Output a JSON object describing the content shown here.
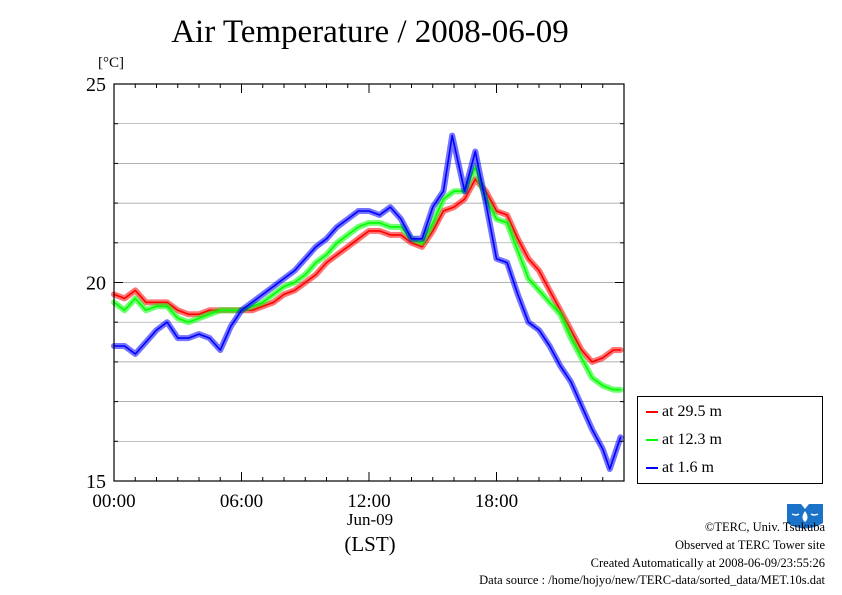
{
  "chart_data": {
    "type": "line",
    "title": "Air Temperature / 2008-06-09",
    "ylabel": "[°C]",
    "xlabel": "Jun-09",
    "x_unit": "(LST)",
    "ylim": [
      15,
      25
    ],
    "y_ticks": [
      "15",
      "20",
      "25"
    ],
    "xlim": [
      "00:00",
      "24:00"
    ],
    "x_ticks": [
      "00:00",
      "06:00",
      "12:00",
      "18:00"
    ],
    "grid": true,
    "legend_position": "bottom-right, outside plot",
    "series": [
      {
        "name": "at 29.5 m",
        "color": "#ff0000",
        "points": [
          [
            "00:00",
            19.7
          ],
          [
            "00:30",
            19.6
          ],
          [
            "01:00",
            19.8
          ],
          [
            "01:30",
            19.5
          ],
          [
            "02:00",
            19.5
          ],
          [
            "02:30",
            19.5
          ],
          [
            "03:00",
            19.3
          ],
          [
            "03:30",
            19.2
          ],
          [
            "04:00",
            19.2
          ],
          [
            "04:30",
            19.3
          ],
          [
            "05:00",
            19.3
          ],
          [
            "05:30",
            19.3
          ],
          [
            "06:00",
            19.3
          ],
          [
            "06:30",
            19.3
          ],
          [
            "07:00",
            19.4
          ],
          [
            "07:30",
            19.5
          ],
          [
            "08:00",
            19.7
          ],
          [
            "08:30",
            19.8
          ],
          [
            "09:00",
            20.0
          ],
          [
            "09:30",
            20.2
          ],
          [
            "10:00",
            20.5
          ],
          [
            "10:30",
            20.7
          ],
          [
            "11:00",
            20.9
          ],
          [
            "11:30",
            21.1
          ],
          [
            "12:00",
            21.3
          ],
          [
            "12:30",
            21.3
          ],
          [
            "13:00",
            21.2
          ],
          [
            "13:30",
            21.2
          ],
          [
            "14:00",
            21.0
          ],
          [
            "14:30",
            20.9
          ],
          [
            "15:00",
            21.3
          ],
          [
            "15:30",
            21.8
          ],
          [
            "16:00",
            21.9
          ],
          [
            "16:30",
            22.1
          ],
          [
            "17:00",
            22.6
          ],
          [
            "17:30",
            22.3
          ],
          [
            "18:00",
            21.8
          ],
          [
            "18:30",
            21.7
          ],
          [
            "19:00",
            21.1
          ],
          [
            "19:30",
            20.6
          ],
          [
            "20:00",
            20.3
          ],
          [
            "20:30",
            19.8
          ],
          [
            "21:00",
            19.3
          ],
          [
            "21:30",
            18.8
          ],
          [
            "22:00",
            18.3
          ],
          [
            "22:30",
            18.0
          ],
          [
            "23:00",
            18.1
          ],
          [
            "23:30",
            18.3
          ],
          [
            "23:50",
            18.3
          ]
        ]
      },
      {
        "name": "at 12.3 m",
        "color": "#00ff00",
        "points": [
          [
            "00:00",
            19.5
          ],
          [
            "00:30",
            19.3
          ],
          [
            "01:00",
            19.6
          ],
          [
            "01:30",
            19.3
          ],
          [
            "02:00",
            19.4
          ],
          [
            "02:30",
            19.4
          ],
          [
            "03:00",
            19.1
          ],
          [
            "03:30",
            19.0
          ],
          [
            "04:00",
            19.1
          ],
          [
            "04:30",
            19.2
          ],
          [
            "05:00",
            19.3
          ],
          [
            "05:30",
            19.3
          ],
          [
            "06:00",
            19.3
          ],
          [
            "06:30",
            19.4
          ],
          [
            "07:00",
            19.5
          ],
          [
            "07:30",
            19.7
          ],
          [
            "08:00",
            19.9
          ],
          [
            "08:30",
            20.0
          ],
          [
            "09:00",
            20.2
          ],
          [
            "09:30",
            20.5
          ],
          [
            "10:00",
            20.7
          ],
          [
            "10:30",
            21.0
          ],
          [
            "11:00",
            21.2
          ],
          [
            "11:30",
            21.4
          ],
          [
            "12:00",
            21.5
          ],
          [
            "12:30",
            21.5
          ],
          [
            "13:00",
            21.4
          ],
          [
            "13:30",
            21.4
          ],
          [
            "14:00",
            21.1
          ],
          [
            "14:30",
            21.0
          ],
          [
            "15:00",
            21.5
          ],
          [
            "15:30",
            22.1
          ],
          [
            "16:00",
            22.3
          ],
          [
            "16:30",
            22.3
          ],
          [
            "17:00",
            22.9
          ],
          [
            "17:30",
            22.1
          ],
          [
            "18:00",
            21.6
          ],
          [
            "18:30",
            21.5
          ],
          [
            "19:00",
            20.8
          ],
          [
            "19:30",
            20.1
          ],
          [
            "20:00",
            19.8
          ],
          [
            "20:30",
            19.5
          ],
          [
            "21:00",
            19.2
          ],
          [
            "21:30",
            18.6
          ],
          [
            "22:00",
            18.1
          ],
          [
            "22:30",
            17.6
          ],
          [
            "23:00",
            17.4
          ],
          [
            "23:30",
            17.3
          ],
          [
            "23:50",
            17.3
          ]
        ]
      },
      {
        "name": "at 1.6 m",
        "color": "#0000ff",
        "points": [
          [
            "00:00",
            18.4
          ],
          [
            "00:30",
            18.4
          ],
          [
            "01:00",
            18.2
          ],
          [
            "01:30",
            18.5
          ],
          [
            "02:00",
            18.8
          ],
          [
            "02:30",
            19.0
          ],
          [
            "03:00",
            18.6
          ],
          [
            "03:30",
            18.6
          ],
          [
            "04:00",
            18.7
          ],
          [
            "04:30",
            18.6
          ],
          [
            "05:00",
            18.3
          ],
          [
            "05:30",
            18.9
          ],
          [
            "06:00",
            19.3
          ],
          [
            "06:30",
            19.5
          ],
          [
            "07:00",
            19.7
          ],
          [
            "07:30",
            19.9
          ],
          [
            "08:00",
            20.1
          ],
          [
            "08:30",
            20.3
          ],
          [
            "09:00",
            20.6
          ],
          [
            "09:30",
            20.9
          ],
          [
            "10:00",
            21.1
          ],
          [
            "10:30",
            21.4
          ],
          [
            "11:00",
            21.6
          ],
          [
            "11:30",
            21.8
          ],
          [
            "12:00",
            21.8
          ],
          [
            "12:30",
            21.7
          ],
          [
            "13:00",
            21.9
          ],
          [
            "13:30",
            21.6
          ],
          [
            "14:00",
            21.1
          ],
          [
            "14:30",
            21.1
          ],
          [
            "15:00",
            21.9
          ],
          [
            "15:30",
            22.3
          ],
          [
            "15:55",
            23.7
          ],
          [
            "16:30",
            22.3
          ],
          [
            "17:00",
            23.3
          ],
          [
            "17:30",
            22.0
          ],
          [
            "18:00",
            20.6
          ],
          [
            "18:30",
            20.5
          ],
          [
            "19:00",
            19.7
          ],
          [
            "19:30",
            19.0
          ],
          [
            "20:00",
            18.8
          ],
          [
            "20:30",
            18.4
          ],
          [
            "21:00",
            17.9
          ],
          [
            "21:30",
            17.5
          ],
          [
            "22:00",
            16.9
          ],
          [
            "22:30",
            16.3
          ],
          [
            "23:00",
            15.8
          ],
          [
            "23:20",
            15.3
          ],
          [
            "23:50",
            16.1
          ]
        ]
      }
    ]
  },
  "credits": {
    "copyright": "©TERC, Univ. Tsukuba",
    "site": "Observed at TERC Tower site",
    "created": "Created Automatically at 2008-06-09/23:55:26",
    "source": "Data source : /home/hojyo/new/TERC-data/sorted_data/MET.10s.dat"
  },
  "logo": {
    "text": "TERC",
    "color": "#0066cc"
  }
}
